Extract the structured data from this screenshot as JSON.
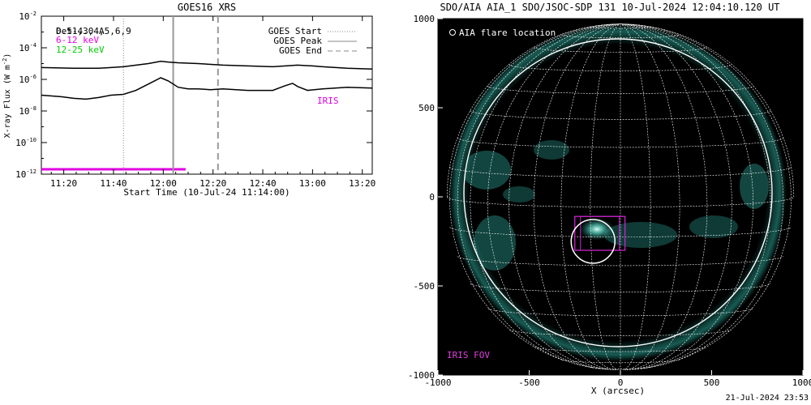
{
  "goes": {
    "title": "GOES16 XRS",
    "ylabel_base": "X-ray Flux (W m",
    "ylabel_sup": "-2",
    "ylabel_close": ")",
    "xlabel": "Start Time (10-Jul-24 11:14:00)",
    "legend_left": [
      {
        "text": "0.5-4.0 A",
        "color": "#000000"
      },
      {
        "text": "Det1,3,4,5,6,9",
        "color": "#000000"
      },
      {
        "text": "6-12 keV",
        "color": "#e000e0"
      },
      {
        "text": "12-25 keV",
        "color": "#00cc00"
      }
    ],
    "legend_right": [
      {
        "text": "GOES Start",
        "style": "dotted"
      },
      {
        "text": "GOES Peak",
        "style": "solid"
      },
      {
        "text": "GOES End",
        "style": "dashed"
      }
    ],
    "iris_label": "IRIS",
    "iris_color": "#e000e0",
    "y_ticks": [
      {
        "base": "10",
        "exp": "-2",
        "log": -2
      },
      {
        "base": "10",
        "exp": "-4",
        "log": -4
      },
      {
        "base": "10",
        "exp": "-6",
        "log": -6
      },
      {
        "base": "10",
        "exp": "-8",
        "log": -8
      },
      {
        "base": "10",
        "exp": "-10",
        "log": -10
      },
      {
        "base": "10",
        "exp": "-12",
        "log": -12
      }
    ],
    "x_ticks": [
      {
        "label": "11:20",
        "min": 6
      },
      {
        "label": "11:40",
        "min": 26
      },
      {
        "label": "12:00",
        "min": 46
      },
      {
        "label": "12:20",
        "min": 66
      },
      {
        "label": "12:40",
        "min": 86
      },
      {
        "label": "13:00",
        "min": 106
      },
      {
        "label": "13:20",
        "min": 126
      }
    ]
  },
  "aia": {
    "title": "SDO/AIA AIA_1 SDO/JSOC-SDP 131 10-Jul-2024 12:04:10.120 UT",
    "legend": "AIA flare location",
    "fov_label": "IRIS FOV",
    "xlabel": "X (arcsec)",
    "x_ticks": [
      "-1000",
      "-500",
      "0",
      "500",
      "1000"
    ],
    "y_ticks": [
      "1000",
      "500",
      "0",
      "-500",
      "-1000"
    ],
    "colors": {
      "disk_glow": "#2fb8a8",
      "grid": "#ffffff",
      "fov": "#cc22cc"
    }
  },
  "footer": {
    "timestamp": "21-Jul-2024 23:53"
  },
  "chart_data": [
    {
      "type": "line",
      "title": "GOES16 XRS",
      "xlabel": "Start Time (10-Jul-24 11:14:00)",
      "ylabel": "X-ray Flux (W m^-2)",
      "yscale": "log",
      "ylim": [
        1e-12,
        0.01
      ],
      "xlim_minutes_from_start": [
        -3,
        130
      ],
      "series": [
        {
          "name": "0.5-4.0 A",
          "color": "#000000",
          "x_minutes": [
            -3,
            10,
            20,
            30,
            40,
            45,
            48,
            52,
            60,
            70,
            80,
            90,
            100,
            106,
            110,
            120,
            130
          ],
          "log10_flux": [
            -5.25,
            -5.3,
            -5.3,
            -5.2,
            -5.0,
            -4.85,
            -4.9,
            -4.95,
            -5.0,
            -5.1,
            -5.15,
            -5.2,
            -5.1,
            -5.15,
            -5.2,
            -5.3,
            -5.35
          ]
        },
        {
          "name": "Det1,3,4,5,6,9",
          "color": "#000000",
          "x_minutes": [
            -3,
            5,
            10,
            15,
            20,
            25,
            30,
            35,
            40,
            45,
            48,
            52,
            56,
            60,
            65,
            70,
            80,
            90,
            95,
            98,
            100,
            104,
            110,
            115,
            120,
            130
          ],
          "log10_flux": [
            -7.0,
            -7.1,
            -7.2,
            -7.25,
            -7.15,
            -7.0,
            -6.95,
            -6.7,
            -6.3,
            -5.9,
            -6.1,
            -6.5,
            -6.6,
            -6.6,
            -6.65,
            -6.6,
            -6.7,
            -6.7,
            -6.4,
            -6.25,
            -6.45,
            -6.7,
            -6.6,
            -6.55,
            -6.5,
            -6.55
          ]
        }
      ],
      "vlines": [
        {
          "name": "GOES Start",
          "x_minutes": 30,
          "style": "dotted"
        },
        {
          "name": "GOES Peak",
          "x_minutes": 50,
          "style": "solid"
        },
        {
          "name": "GOES End",
          "x_minutes": 68,
          "style": "dashed"
        }
      ],
      "iris_coverage_minutes": [
        -3,
        55
      ]
    },
    {
      "type": "image",
      "title": "SDO/AIA AIA_1 SDO/JSOC-SDP 131 10-Jul-2024 12:04:10.120 UT",
      "xlabel": "X (arcsec)",
      "xlim": [
        -1000,
        1000
      ],
      "ylim": [
        -1000,
        1000
      ],
      "solar_radius_arcsec": 950,
      "grid_spacing_deg": 10,
      "flare_location_arcsec": [
        -150,
        -250
      ],
      "flare_circle_radius_arcsec": 120,
      "iris_fov_arcsec": {
        "x": [
          -250,
          25
        ],
        "y": [
          -300,
          -110
        ]
      }
    }
  ]
}
